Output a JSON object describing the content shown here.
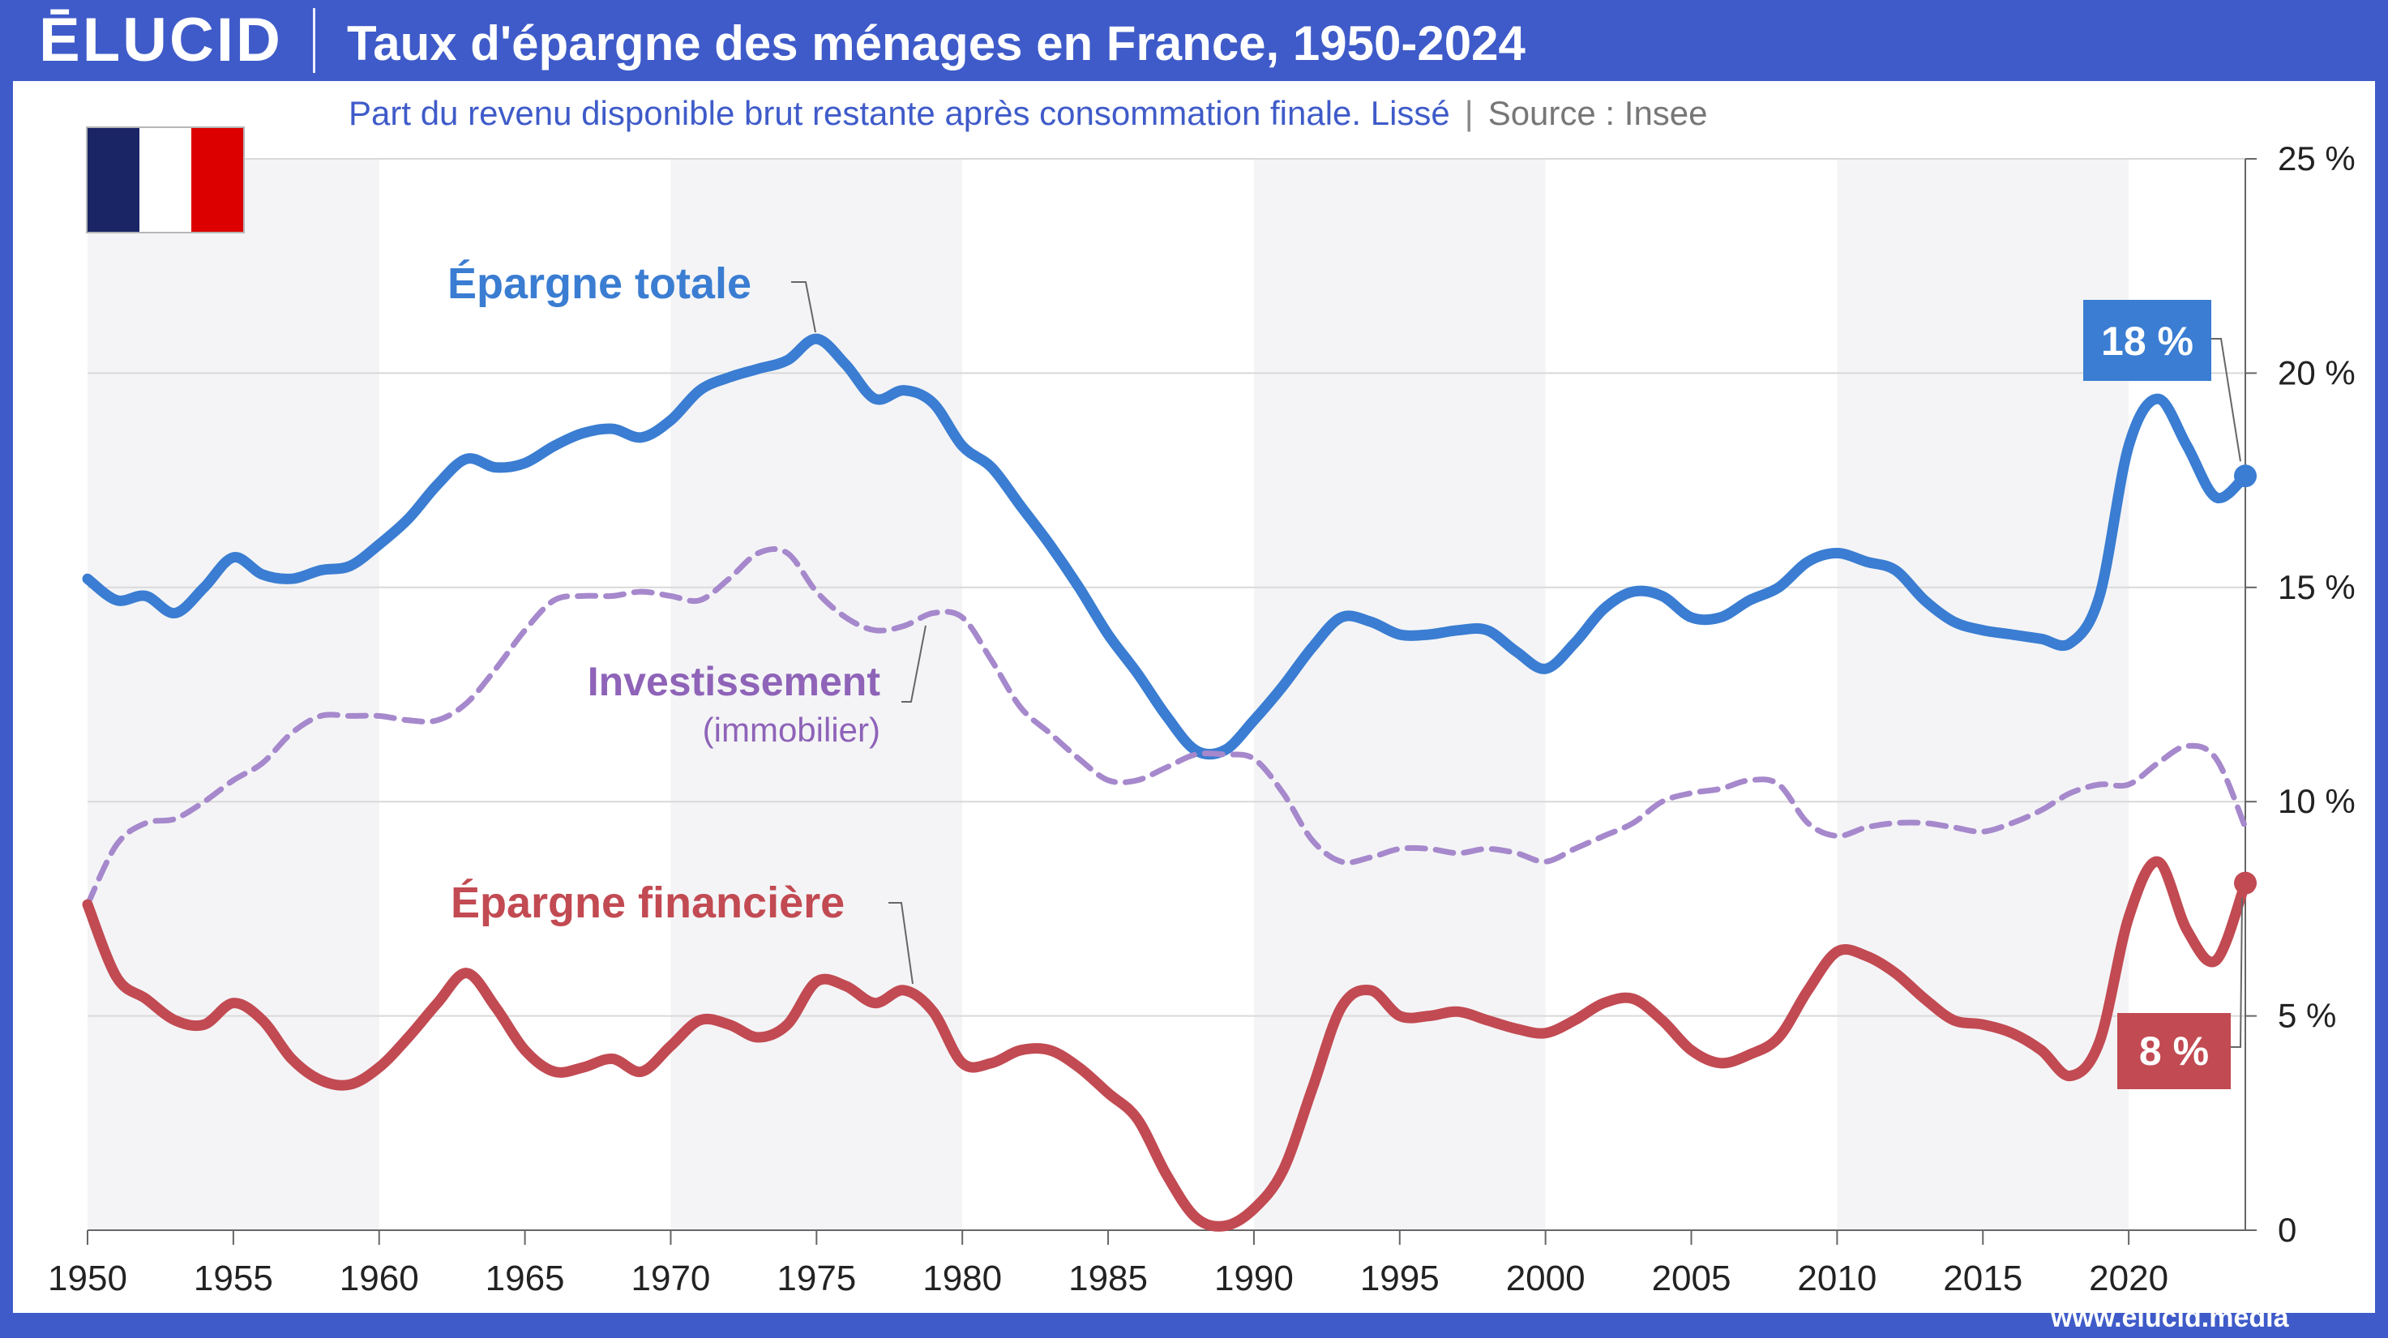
{
  "header": {
    "logo": "ĒLUCID",
    "title": "Taux d'épargne des ménages en France, 1950-2024"
  },
  "subtitle": {
    "text": "Part du revenu disponible brut restante après consommation finale. Lissé",
    "separator": "|",
    "source": "Source : Insee"
  },
  "footer": {
    "url": "www.elucid.media"
  },
  "flag": {
    "name": "france-flag",
    "colors": [
      "#1a2566",
      "#ffffff",
      "#dd0000"
    ]
  },
  "colors": {
    "frame": "#3f5bc9",
    "total": "#3a7dd2",
    "investment": "#a688cc",
    "financial": "#c24a52",
    "band": "#f4f4f6",
    "grid": "#d9d9d9"
  },
  "chart_data": {
    "type": "line",
    "x_ticks": [
      1950,
      1955,
      1960,
      1965,
      1970,
      1975,
      1980,
      1985,
      1990,
      1995,
      2000,
      2005,
      2010,
      2015,
      2020
    ],
    "y_ticks": [
      0,
      5,
      10,
      15,
      20,
      25
    ],
    "y_tick_labels": [
      "0",
      "5 %",
      "10 %",
      "15 %",
      "20 %",
      "25 %"
    ],
    "xlim": [
      1950,
      2024
    ],
    "ylim": [
      0,
      25
    ],
    "grid": true,
    "series": [
      {
        "name": "Épargne totale",
        "style": "solid",
        "x": [
          1950,
          1951,
          1952,
          1953,
          1954,
          1955,
          1956,
          1957,
          1958,
          1959,
          1960,
          1961,
          1962,
          1963,
          1964,
          1965,
          1966,
          1967,
          1968,
          1969,
          1970,
          1971,
          1972,
          1973,
          1974,
          1975,
          1976,
          1977,
          1978,
          1979,
          1980,
          1981,
          1982,
          1983,
          1984,
          1985,
          1986,
          1987,
          1988,
          1989,
          1990,
          1991,
          1992,
          1993,
          1994,
          1995,
          1996,
          1997,
          1998,
          1999,
          2000,
          2001,
          2002,
          2003,
          2004,
          2005,
          2006,
          2007,
          2008,
          2009,
          2010,
          2011,
          2012,
          2013,
          2014,
          2015,
          2016,
          2017,
          2018,
          2019,
          2020,
          2021,
          2022,
          2023,
          2024
        ],
        "values": [
          15.2,
          14.7,
          14.8,
          14.4,
          15.0,
          15.7,
          15.3,
          15.2,
          15.4,
          15.5,
          16.0,
          16.6,
          17.4,
          18.0,
          17.8,
          17.9,
          18.3,
          18.6,
          18.7,
          18.5,
          18.9,
          19.6,
          19.9,
          20.1,
          20.3,
          20.8,
          20.2,
          19.4,
          19.6,
          19.3,
          18.3,
          17.8,
          16.9,
          16.0,
          15.0,
          13.9,
          13.0,
          12.0,
          11.2,
          11.2,
          11.9,
          12.7,
          13.6,
          14.3,
          14.2,
          13.9,
          13.9,
          14.0,
          14.0,
          13.5,
          13.1,
          13.7,
          14.5,
          14.9,
          14.8,
          14.3,
          14.3,
          14.7,
          15.0,
          15.6,
          15.8,
          15.6,
          15.4,
          14.7,
          14.2,
          14.0,
          13.9,
          13.8,
          13.7,
          14.8,
          18.3,
          19.4,
          18.3,
          17.1,
          17.6
        ],
        "end_label": "18 %"
      },
      {
        "name": "Investissement",
        "sublabel": "(immobilier)",
        "style": "dashed",
        "x": [
          1950,
          1951,
          1952,
          1953,
          1954,
          1955,
          1956,
          1957,
          1958,
          1959,
          1960,
          1961,
          1962,
          1963,
          1964,
          1965,
          1966,
          1967,
          1968,
          1969,
          1970,
          1971,
          1972,
          1973,
          1974,
          1975,
          1976,
          1977,
          1978,
          1979,
          1980,
          1981,
          1982,
          1983,
          1984,
          1985,
          1986,
          1987,
          1988,
          1989,
          1990,
          1991,
          1992,
          1993,
          1994,
          1995,
          1996,
          1997,
          1998,
          1999,
          2000,
          2001,
          2002,
          2003,
          2004,
          2005,
          2006,
          2007,
          2008,
          2009,
          2010,
          2011,
          2012,
          2013,
          2014,
          2015,
          2016,
          2017,
          2018,
          2019,
          2020,
          2021,
          2022,
          2023,
          2024
        ],
        "values": [
          7.6,
          9.0,
          9.5,
          9.6,
          10.0,
          10.5,
          10.9,
          11.6,
          12.0,
          12.0,
          12.0,
          11.9,
          11.9,
          12.3,
          13.1,
          14.0,
          14.7,
          14.8,
          14.8,
          14.9,
          14.8,
          14.7,
          15.2,
          15.8,
          15.8,
          14.9,
          14.3,
          14.0,
          14.1,
          14.4,
          14.3,
          13.3,
          12.2,
          11.6,
          11.0,
          10.5,
          10.5,
          10.8,
          11.1,
          11.1,
          11.0,
          10.2,
          9.1,
          8.6,
          8.7,
          8.9,
          8.9,
          8.8,
          8.9,
          8.8,
          8.6,
          8.9,
          9.2,
          9.5,
          10.0,
          10.2,
          10.3,
          10.5,
          10.4,
          9.5,
          9.2,
          9.4,
          9.5,
          9.5,
          9.4,
          9.3,
          9.5,
          9.8,
          10.2,
          10.4,
          10.4,
          10.9,
          11.3,
          11.0,
          9.4
        ]
      },
      {
        "name": "Épargne financière",
        "style": "solid",
        "x": [
          1950,
          1951,
          1952,
          1953,
          1954,
          1955,
          1956,
          1957,
          1958,
          1959,
          1960,
          1961,
          1962,
          1963,
          1964,
          1965,
          1966,
          1967,
          1968,
          1969,
          1970,
          1971,
          1972,
          1973,
          1974,
          1975,
          1976,
          1977,
          1978,
          1979,
          1980,
          1981,
          1982,
          1983,
          1984,
          1985,
          1986,
          1987,
          1988,
          1989,
          1990,
          1991,
          1992,
          1993,
          1994,
          1995,
          1996,
          1997,
          1998,
          1999,
          2000,
          2001,
          2002,
          2003,
          2004,
          2005,
          2006,
          2007,
          2008,
          2009,
          2010,
          2011,
          2012,
          2013,
          2014,
          2015,
          2016,
          2017,
          2018,
          2019,
          2020,
          2021,
          2022,
          2023,
          2024
        ],
        "values": [
          7.6,
          5.9,
          5.4,
          4.9,
          4.8,
          5.3,
          4.9,
          4.0,
          3.5,
          3.4,
          3.8,
          4.5,
          5.3,
          6.0,
          5.2,
          4.2,
          3.7,
          3.8,
          4.0,
          3.7,
          4.3,
          4.9,
          4.8,
          4.5,
          4.8,
          5.8,
          5.7,
          5.3,
          5.6,
          5.1,
          3.9,
          3.9,
          4.2,
          4.2,
          3.8,
          3.2,
          2.6,
          1.3,
          0.3,
          0.1,
          0.5,
          1.4,
          3.3,
          5.2,
          5.6,
          5.0,
          5.0,
          5.1,
          4.9,
          4.7,
          4.6,
          4.9,
          5.3,
          5.4,
          4.9,
          4.2,
          3.9,
          4.1,
          4.5,
          5.6,
          6.5,
          6.4,
          6.0,
          5.4,
          4.9,
          4.8,
          4.6,
          4.2,
          3.6,
          4.4,
          7.3,
          8.6,
          7.0,
          6.3,
          8.1
        ],
        "end_label": "8 %"
      }
    ]
  }
}
